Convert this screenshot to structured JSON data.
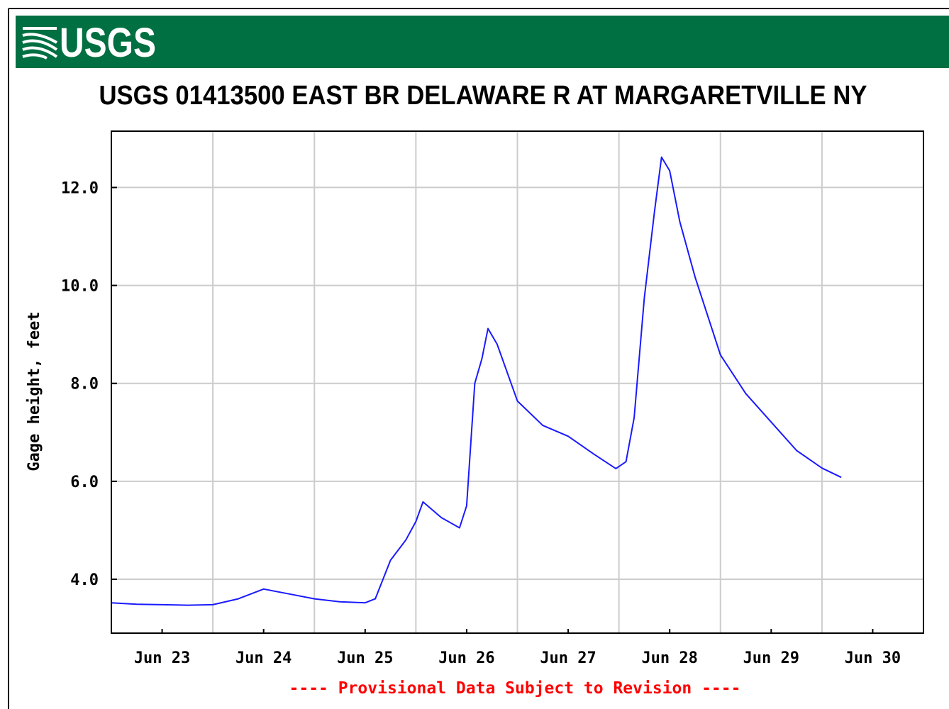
{
  "header": {
    "logo": "USGS"
  },
  "chart_data": {
    "type": "line",
    "title": "USGS 01413500 EAST BR DELAWARE R AT MARGARETVILLE NY",
    "ylabel": "Gage height, feet",
    "note": "---- Provisional Data Subject to Revision ----",
    "xlim": [
      23,
      31
    ],
    "ylim": [
      2.9,
      13.15
    ],
    "xticks": [
      {
        "value": 23.5,
        "label": "Jun 23"
      },
      {
        "value": 24.5,
        "label": "Jun 24"
      },
      {
        "value": 25.5,
        "label": "Jun 25"
      },
      {
        "value": 26.5,
        "label": "Jun 26"
      },
      {
        "value": 27.5,
        "label": "Jun 27"
      },
      {
        "value": 28.5,
        "label": "Jun 28"
      },
      {
        "value": 29.5,
        "label": "Jun 29"
      },
      {
        "value": 30.5,
        "label": "Jun 30"
      }
    ],
    "xgrid": [
      24,
      25,
      26,
      27,
      28,
      29,
      30
    ],
    "yticks": [
      {
        "value": 4,
        "label": "4.0"
      },
      {
        "value": 6,
        "label": "6.0"
      },
      {
        "value": 8,
        "label": "8.0"
      },
      {
        "value": 10,
        "label": "10.0"
      },
      {
        "value": 12,
        "label": "12.0"
      }
    ],
    "grid": true,
    "series": [
      {
        "name": "Gage height",
        "color": "#1a1aff",
        "x": [
          23,
          23.25,
          23.5,
          23.75,
          24,
          24.25,
          24.5,
          24.75,
          25,
          25.25,
          25.5,
          25.6,
          25.75,
          25.9,
          26,
          26.07,
          26.25,
          26.43,
          26.5,
          26.58,
          26.65,
          26.71,
          26.8,
          27,
          27.25,
          27.5,
          27.75,
          27.97,
          28.07,
          28.15,
          28.25,
          28.35,
          28.42,
          28.5,
          28.6,
          28.75,
          29,
          29.25,
          29.5,
          29.75,
          30,
          30.19
        ],
        "values": [
          3.52,
          3.49,
          3.48,
          3.47,
          3.48,
          3.6,
          3.8,
          3.7,
          3.6,
          3.54,
          3.52,
          3.6,
          4.39,
          4.8,
          5.18,
          5.58,
          5.26,
          5.05,
          5.5,
          8.0,
          8.5,
          9.12,
          8.8,
          7.64,
          7.14,
          6.92,
          6.56,
          6.26,
          6.4,
          7.3,
          9.74,
          11.5,
          12.62,
          12.34,
          11.3,
          10.17,
          8.58,
          7.79,
          7.21,
          6.63,
          6.27,
          6.08
        ]
      }
    ]
  }
}
